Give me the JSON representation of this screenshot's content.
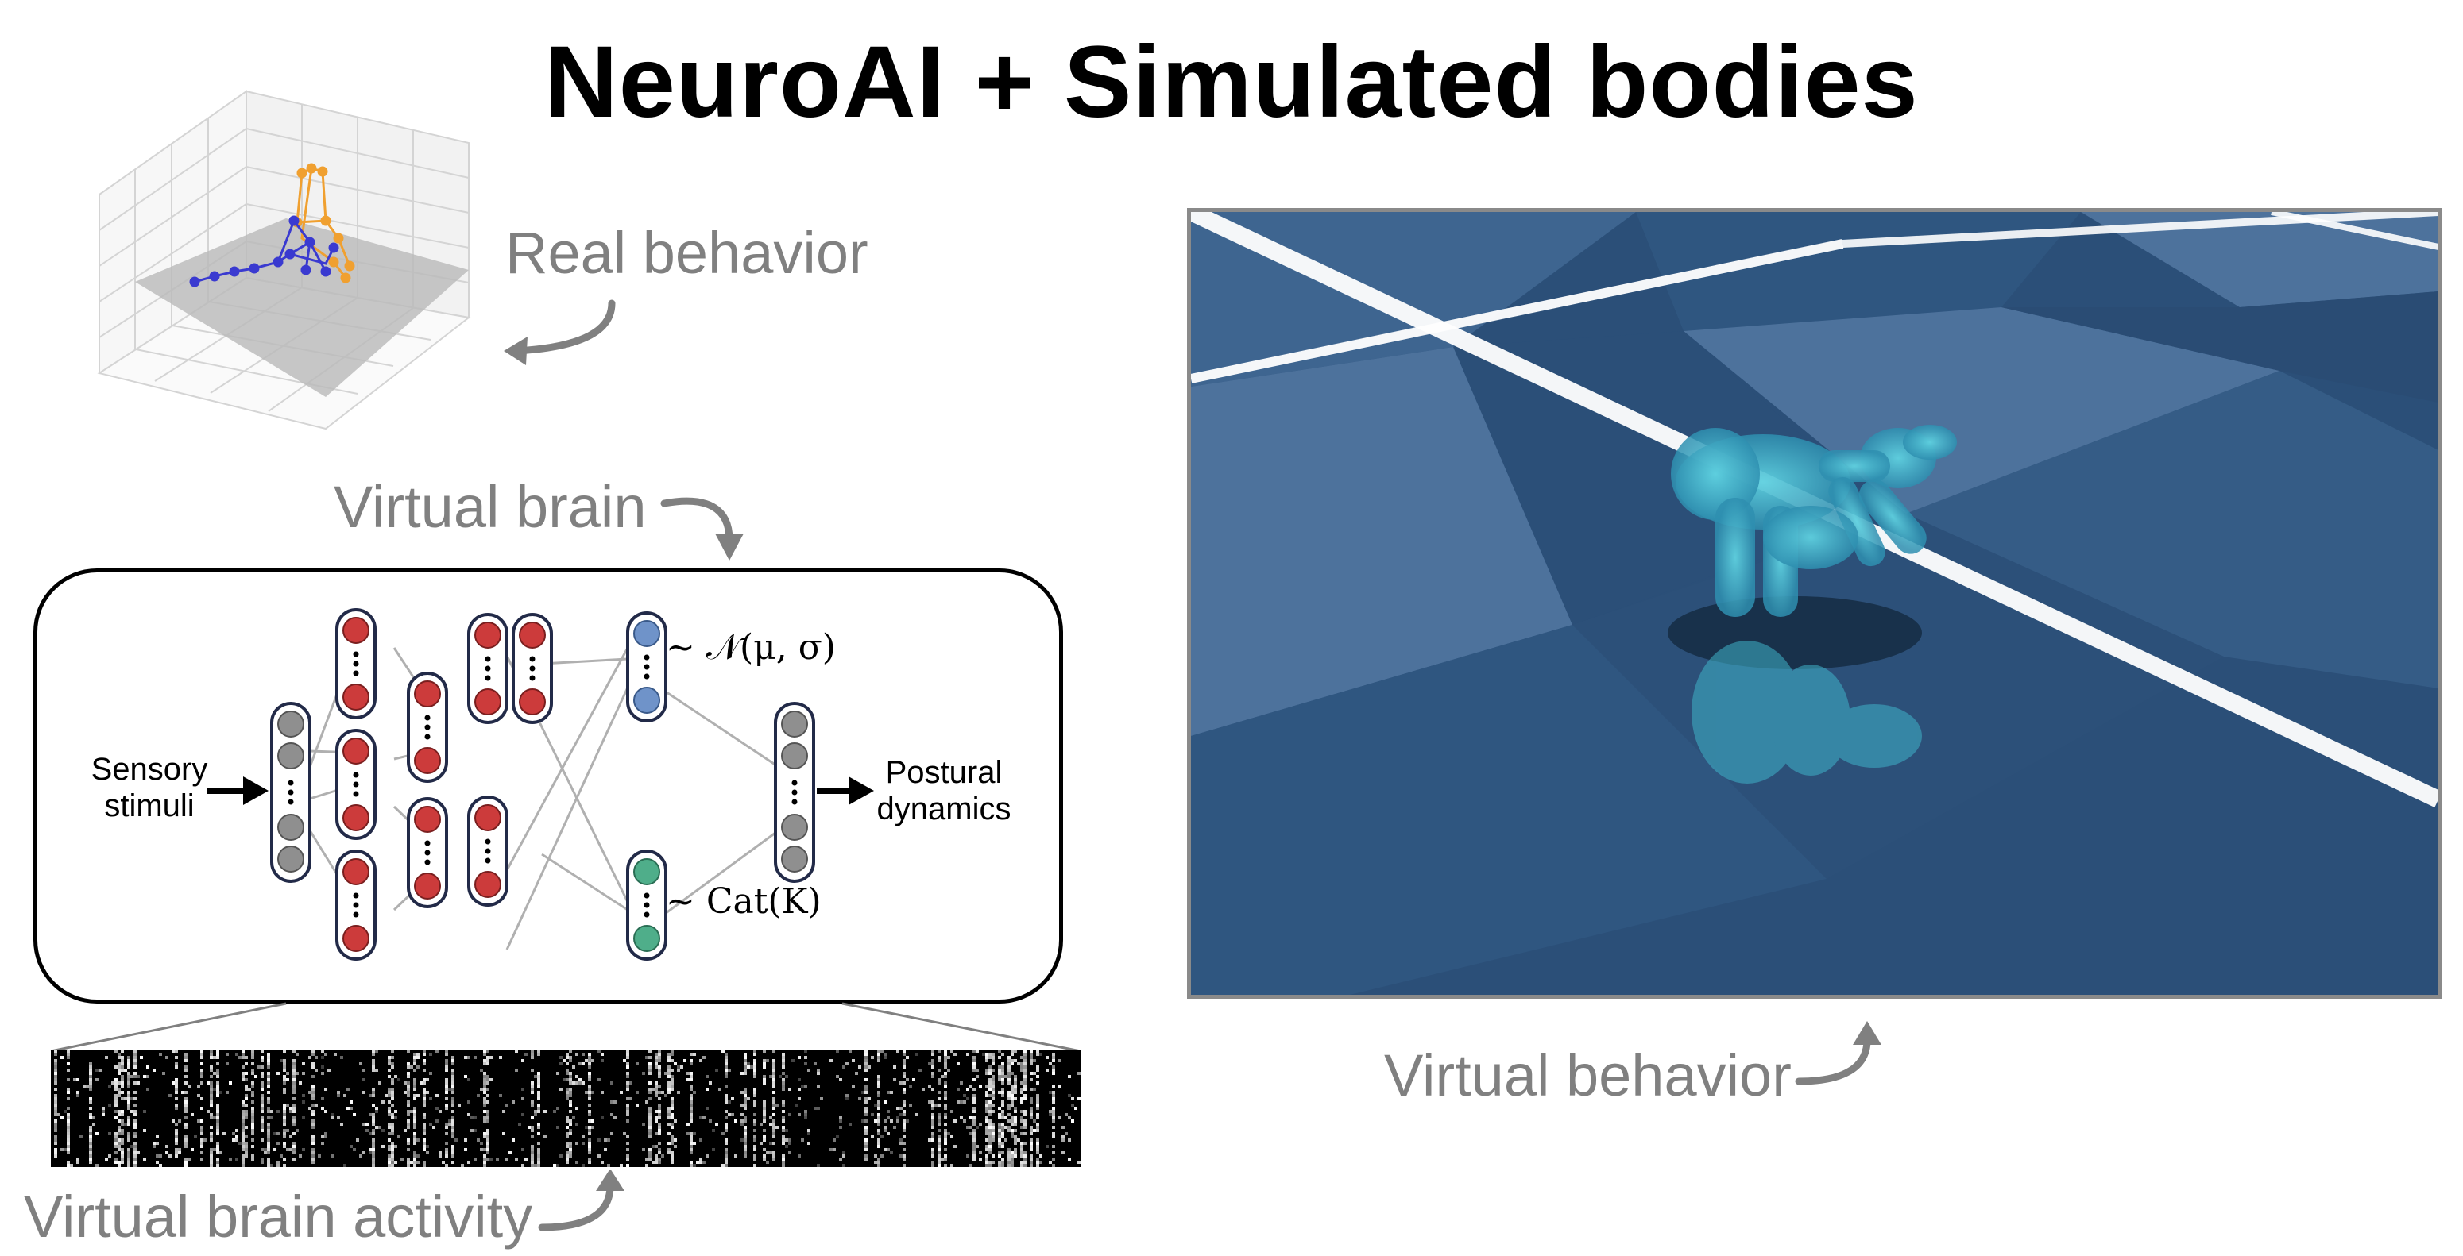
{
  "title": "NeuroAI + Simulated bodies",
  "labels": {
    "real_behavior": "Real behavior",
    "virtual_brain": "Virtual brain",
    "virtual_behavior": "Virtual behavior",
    "virtual_brain_activity": "Virtual brain activity"
  },
  "network": {
    "input_label": "Sensory stimuli",
    "output_label": "Postural dynamics",
    "gaussian_head": "∼ 𝒩(μ, σ)",
    "categorical_head": "∼ Cat(K)"
  },
  "colors": {
    "neuron_gray": "#8f8f8f",
    "neuron_red": "#cc3b3b",
    "neuron_blue": "#6f93c9",
    "neuron_green": "#4fae8a",
    "label_gray": "#808080",
    "floor_dark": "#2b4f78",
    "floor_light": "#4d729c",
    "body_cyan": "#3fb3c9",
    "skeleton_orange": "#f0a030",
    "skeleton_blue": "#3a3ad0"
  },
  "icons": {
    "curved_arrow": "curved-arrow-icon",
    "input_arrow": "right-arrow-icon"
  }
}
